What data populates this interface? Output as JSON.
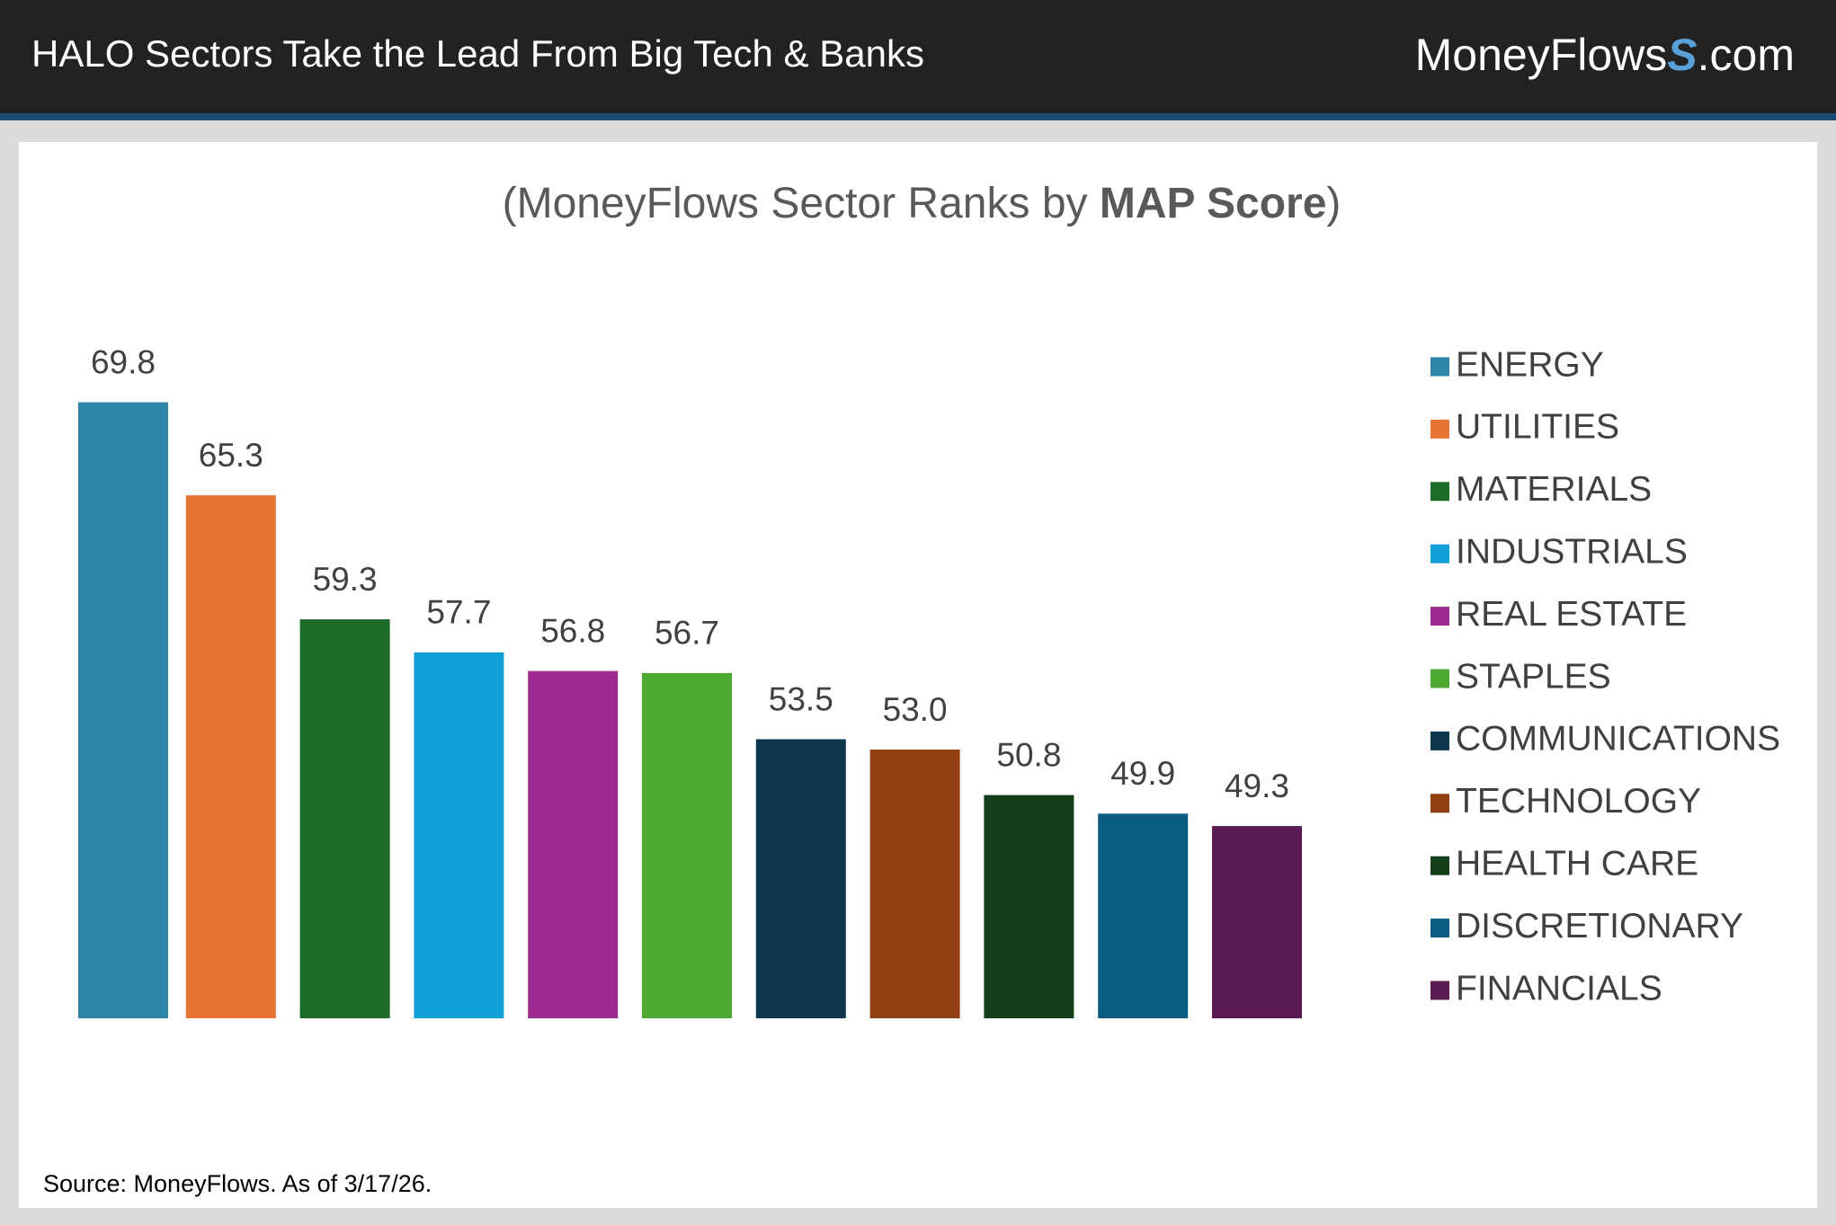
{
  "header": {
    "title": "HALO Sectors Take the Lead From Big Tech & Banks",
    "logo": {
      "name": "MoneyFlows",
      "mark": "S",
      "domain": ".com"
    }
  },
  "chart_data": {
    "type": "bar",
    "subtitle": {
      "before": "(MoneyFlows Sector Ranks by ",
      "bold": "MAP Score",
      "after": ")"
    },
    "categories": [
      "ENERGY",
      "UTILITIES",
      "MATERIALS",
      "INDUSTRIALS",
      "REAL ESTATE",
      "STAPLES",
      "COMMUNICATIONS",
      "TECHNOLOGY",
      "HEALTH CARE",
      "DISCRETIONARY",
      "FINANCIALS"
    ],
    "values": [
      69.8,
      65.3,
      59.3,
      57.7,
      56.8,
      56.7,
      53.5,
      53.0,
      50.8,
      49.9,
      49.3
    ],
    "value_labels": [
      "69.8",
      "65.3",
      "59.3",
      "57.7",
      "56.8",
      "56.7",
      "53.5",
      "53.0",
      "50.8",
      "49.9",
      "49.3"
    ],
    "colors": [
      "#2e86a6",
      "#e87434",
      "#1c6b26",
      "#119fd8",
      "#9c2a8f",
      "#4ea832",
      "#0e374f",
      "#933f12",
      "#123f17",
      "#0a5c80",
      "#5c1a52"
    ],
    "ylim": [
      40,
      70
    ],
    "legend": "right",
    "source": "Source: MoneyFlows. As of 3/17/26."
  }
}
